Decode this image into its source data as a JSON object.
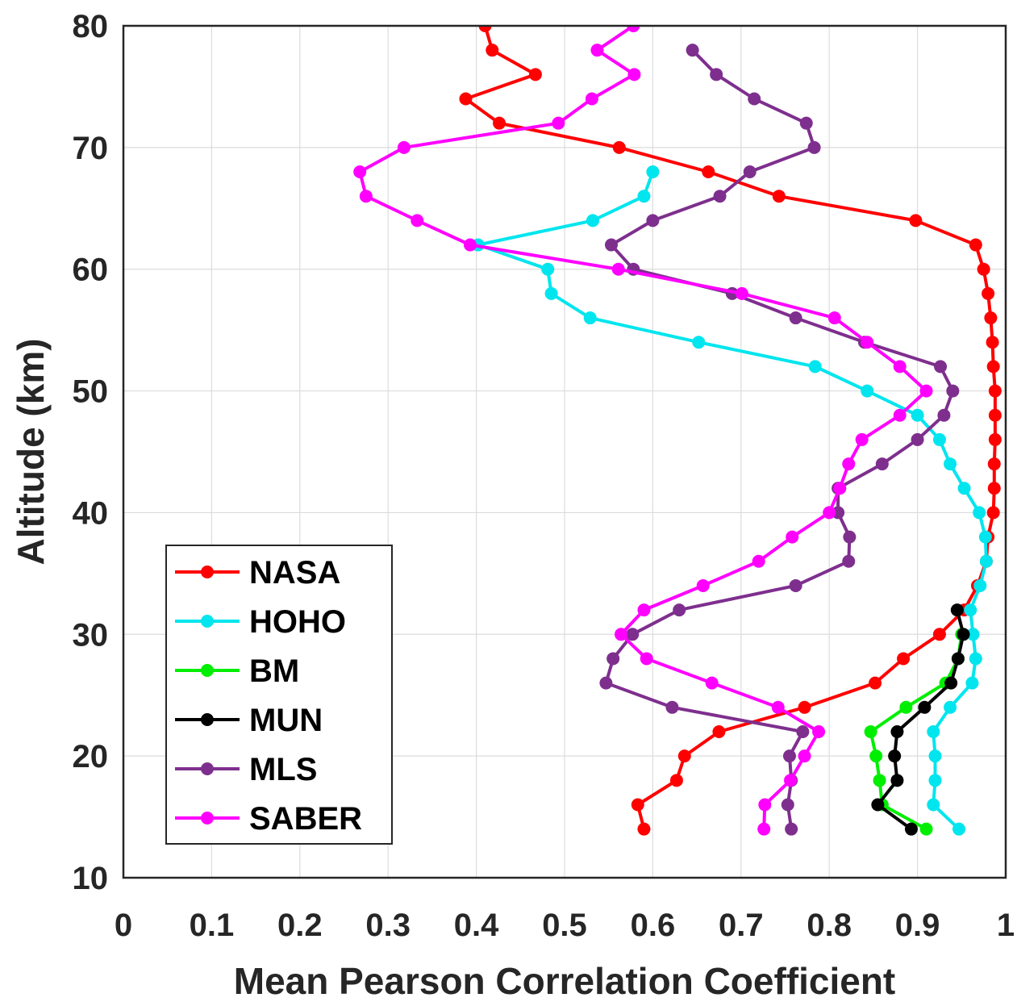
{
  "chart_data": {
    "type": "line",
    "title": "",
    "xlabel": "Mean Pearson Correlation Coefficient",
    "ylabel": "Altitude (km)",
    "xlim": [
      0,
      1
    ],
    "ylim": [
      10,
      80
    ],
    "xticks": [
      0,
      0.1,
      0.2,
      0.3,
      0.4,
      0.5,
      0.6,
      0.7,
      0.8,
      0.9,
      1
    ],
    "xtick_labels": [
      "0",
      "0.1",
      "0.2",
      "0.3",
      "0.4",
      "0.5",
      "0.6",
      "0.7",
      "0.8",
      "0.9",
      "1"
    ],
    "yticks": [
      10,
      20,
      30,
      40,
      50,
      60,
      70,
      80
    ],
    "ytick_labels": [
      "10",
      "20",
      "30",
      "40",
      "50",
      "60",
      "70",
      "80"
    ],
    "grid": true,
    "legend_position": "bottom-left",
    "series": [
      {
        "name": "NASA",
        "color": "#ff0000",
        "x": [
          0.59,
          0.583,
          0.627,
          0.636,
          0.675,
          0.772,
          0.852,
          0.884,
          0.925,
          0.953,
          0.968,
          0.978,
          0.98,
          0.986,
          0.987,
          0.987,
          0.988,
          0.988,
          0.988,
          0.986,
          0.985,
          0.983,
          0.98,
          0.975,
          0.966,
          0.898,
          0.743,
          0.663,
          0.562,
          0.426,
          0.388,
          0.467,
          0.418,
          0.41,
          0.446
        ],
        "y": [
          14,
          16,
          18,
          20,
          22,
          24,
          26,
          28,
          30,
          32,
          34,
          36,
          38,
          40,
          42,
          44,
          46,
          48,
          50,
          52,
          54,
          56,
          58,
          60,
          62,
          64,
          66,
          68,
          70,
          72,
          74,
          76,
          78,
          80,
          82
        ]
      },
      {
        "name": "HOHO",
        "color": "#00e5ee",
        "x": [
          0.947,
          0.918,
          0.92,
          0.92,
          0.918,
          0.937,
          0.962,
          0.966,
          0.963,
          0.96,
          0.971,
          0.978,
          0.977,
          0.97,
          0.953,
          0.937,
          0.925,
          0.9,
          0.843,
          0.784,
          0.652,
          0.529,
          0.485,
          0.481,
          0.402,
          0.532,
          0.59,
          0.6
        ],
        "y": [
          14,
          16,
          18,
          20,
          22,
          24,
          26,
          28,
          30,
          32,
          34,
          36,
          38,
          40,
          42,
          44,
          46,
          48,
          50,
          52,
          54,
          56,
          58,
          60,
          62,
          64,
          66,
          68
        ]
      },
      {
        "name": "BM",
        "color": "#00ee00",
        "x": [
          0.91,
          0.86,
          0.857,
          0.853,
          0.847,
          0.887,
          0.932,
          0.946,
          0.95
        ],
        "y": [
          14,
          16,
          18,
          20,
          22,
          24,
          26,
          28,
          30
        ]
      },
      {
        "name": "MUN",
        "color": "#000000",
        "x": [
          0.893,
          0.855,
          0.877,
          0.874,
          0.877,
          0.908,
          0.938,
          0.946,
          0.952,
          0.945
        ],
        "y": [
          14,
          16,
          18,
          20,
          22,
          24,
          26,
          28,
          30,
          32
        ]
      },
      {
        "name": "MLS",
        "color": "#7e2f8e",
        "x": [
          0.757,
          0.753,
          0.757,
          0.755,
          0.77,
          0.622,
          0.547,
          0.555,
          0.577,
          0.63,
          0.762,
          0.822,
          0.823,
          0.81,
          0.81,
          0.86,
          0.9,
          0.93,
          0.94,
          0.926,
          0.84,
          0.762,
          0.69,
          0.578,
          0.553,
          0.6,
          0.676,
          0.71,
          0.783,
          0.774,
          0.715,
          0.672,
          0.645
        ],
        "y": [
          14,
          16,
          18,
          20,
          22,
          24,
          26,
          28,
          30,
          32,
          34,
          36,
          38,
          40,
          42,
          44,
          46,
          48,
          50,
          52,
          54,
          56,
          58,
          60,
          62,
          64,
          66,
          68,
          70,
          72,
          74,
          76,
          78
        ]
      },
      {
        "name": "SABER",
        "color": "#ff00ff",
        "x": [
          0.726,
          0.727,
          0.756,
          0.772,
          0.788,
          0.742,
          0.667,
          0.593,
          0.564,
          0.59,
          0.657,
          0.72,
          0.758,
          0.8,
          0.812,
          0.822,
          0.837,
          0.88,
          0.91,
          0.88,
          0.843,
          0.806,
          0.701,
          0.561,
          0.393,
          0.333,
          0.275,
          0.268,
          0.318,
          0.493,
          0.531,
          0.579,
          0.537,
          0.578,
          0.544
        ],
        "y": [
          14,
          16,
          18,
          20,
          22,
          24,
          26,
          28,
          30,
          32,
          34,
          36,
          38,
          40,
          42,
          44,
          46,
          48,
          50,
          52,
          54,
          56,
          58,
          60,
          62,
          64,
          66,
          68,
          70,
          72,
          74,
          76,
          78,
          80,
          82
        ]
      }
    ]
  }
}
